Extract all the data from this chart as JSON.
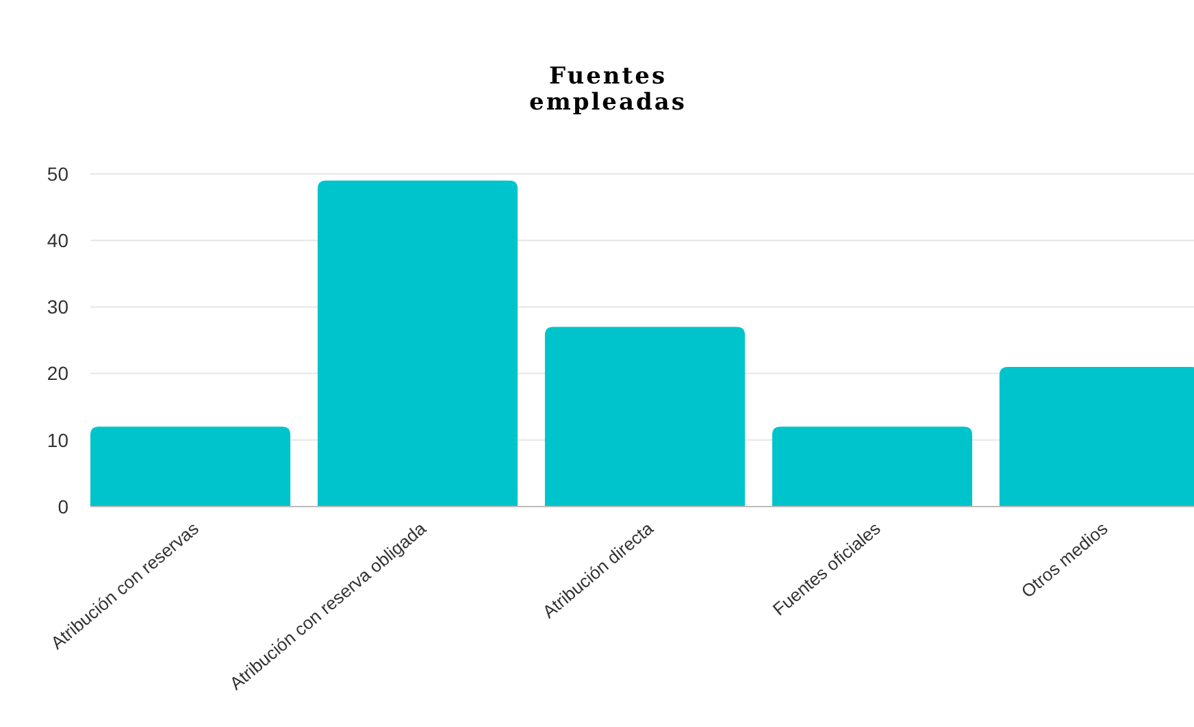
{
  "chart_data": {
    "type": "bar",
    "title": "Fuentes empleadas",
    "categories": [
      "Atribución con reservas",
      "Atribución con reserva obligada",
      "Atribución directa",
      "Fuentes oficiales",
      "Otros medios"
    ],
    "values": [
      12,
      49,
      27,
      12,
      21
    ],
    "color": "#00c4cc",
    "ylim": [
      0,
      50
    ],
    "yticks": [
      0,
      10,
      20,
      30,
      40,
      50
    ],
    "grid": "y"
  }
}
